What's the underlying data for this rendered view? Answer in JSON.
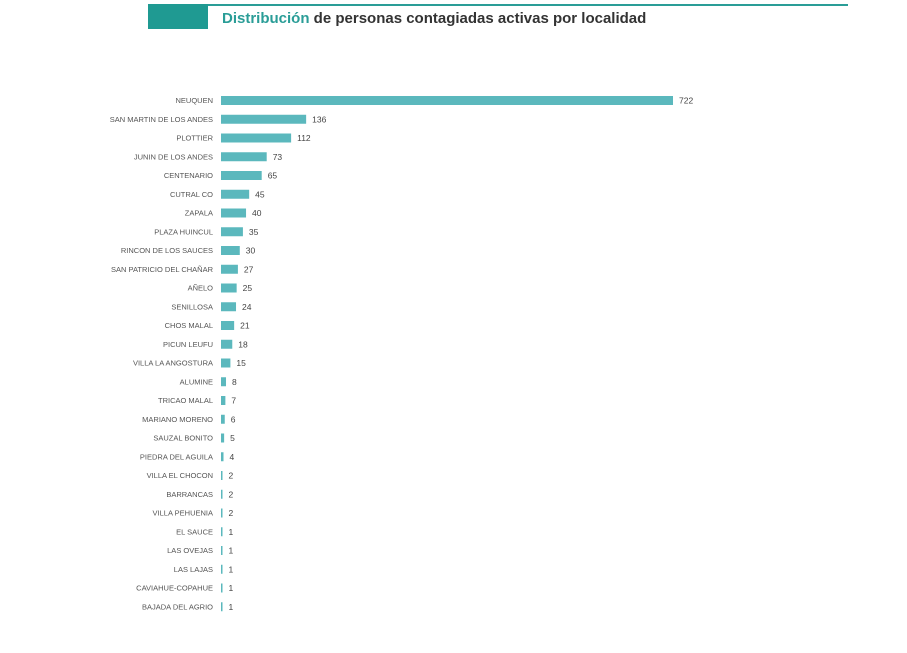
{
  "title": {
    "highlight": "Distribución",
    "rest": " de personas contagiadas activas por localidad"
  },
  "colors": {
    "bar": "#5bb8bd",
    "accent": "#2a9d97",
    "label": "#555555"
  },
  "chart_data": {
    "type": "bar",
    "orientation": "horizontal",
    "title": "Distribución de personas contagiadas activas por localidad",
    "xlabel": "",
    "ylabel": "",
    "grid": false,
    "categories": [
      "NEUQUEN",
      "SAN MARTIN DE LOS ANDES",
      "PLOTTIER",
      "JUNIN DE LOS ANDES",
      "CENTENARIO",
      "CUTRAL CO",
      "ZAPALA",
      "PLAZA HUINCUL",
      "RINCON DE LOS SAUCES",
      "SAN PATRICIO DEL CHAÑAR",
      "AÑELO",
      "SENILLOSA",
      "CHOS MALAL",
      "PICUN LEUFU",
      "VILLA LA ANGOSTURA",
      "ALUMINE",
      "TRICAO MALAL",
      "MARIANO MORENO",
      "SAUZAL BONITO",
      "PIEDRA DEL AGUILA",
      "VILLA EL CHOCON",
      "BARRANCAS",
      "VILLA PEHUENIA",
      "EL SAUCE",
      "LAS OVEJAS",
      "LAS LAJAS",
      "CAVIAHUE-COPAHUE",
      "BAJADA DEL AGRIO"
    ],
    "values": [
      722,
      136,
      112,
      73,
      65,
      45,
      40,
      35,
      30,
      27,
      25,
      24,
      21,
      18,
      15,
      8,
      7,
      6,
      5,
      4,
      2,
      2,
      2,
      1,
      1,
      1,
      1,
      1
    ]
  }
}
